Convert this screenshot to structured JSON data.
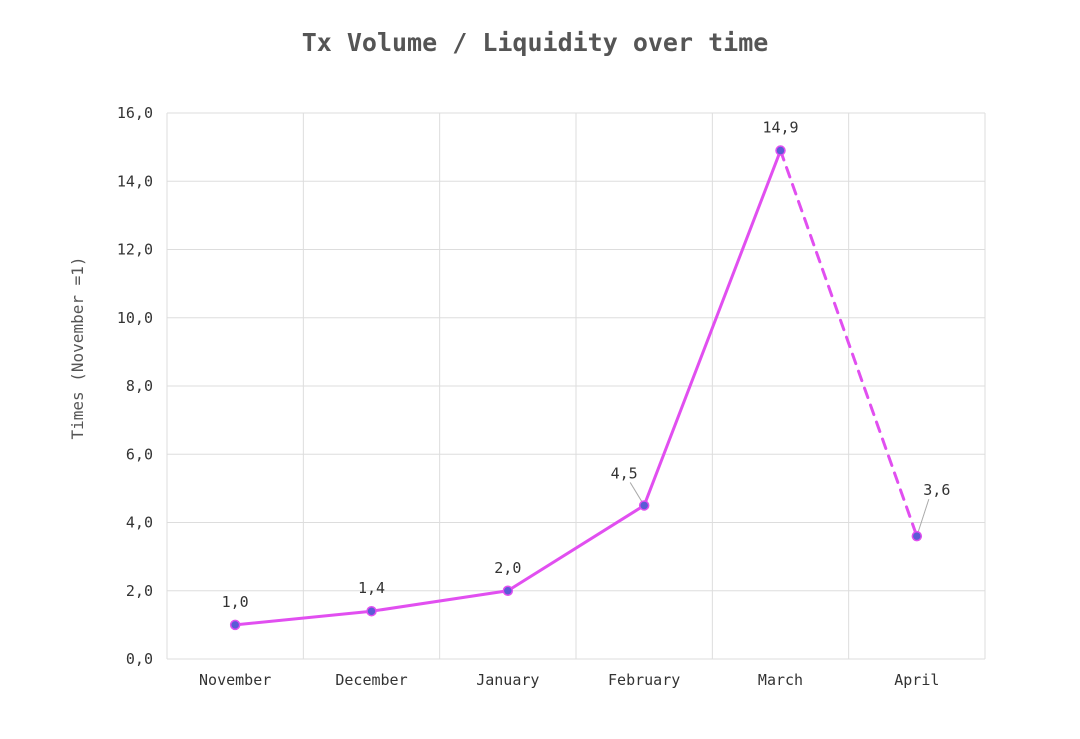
{
  "chart_data": {
    "type": "line",
    "title": "Tx Volume / Liquidity over time",
    "xlabel": "",
    "ylabel": "Times (November =1)",
    "categories": [
      "November",
      "December",
      "January",
      "February",
      "March",
      "April"
    ],
    "series": [
      {
        "values": [
          1.0,
          1.4,
          2.0,
          4.5,
          14.9,
          3.6
        ]
      }
    ],
    "data_labels": [
      "1,0",
      "1,4",
      "2,0",
      "4,5",
      "14,9",
      "3,6"
    ],
    "y_tick_labels": [
      "0,0",
      "2,0",
      "4,0",
      "6,0",
      "8,0",
      "10,0",
      "12,0",
      "14,0",
      "16,0"
    ],
    "ylim": [
      0,
      16
    ],
    "y_tick_step": 2,
    "dashed_last_segment": true,
    "grid": true,
    "legend": "none",
    "line_color": "#e14ff0",
    "marker_color": "#5b5bd6",
    "grid_color": "#dddddd"
  }
}
